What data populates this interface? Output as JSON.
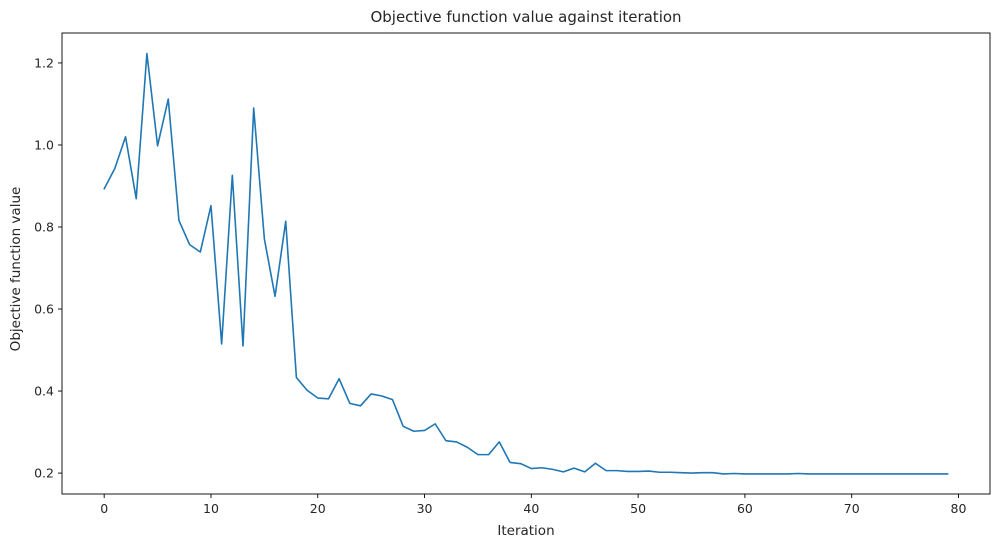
{
  "chart_data": {
    "type": "line",
    "title": "Objective function value against iteration",
    "xlabel": "Iteration",
    "ylabel": "Objective function value",
    "xlim": [
      -3.95,
      82.95
    ],
    "ylim": [
      0.149,
      1.273
    ],
    "xticks": [
      0,
      10,
      20,
      30,
      40,
      50,
      60,
      70,
      80
    ],
    "xtick_labels": [
      "0",
      "10",
      "20",
      "30",
      "40",
      "50",
      "60",
      "70",
      "80"
    ],
    "yticks": [
      0.2,
      0.4,
      0.6,
      0.8,
      1.0,
      1.2
    ],
    "ytick_labels": [
      "0.2",
      "0.4",
      "0.6",
      "0.8",
      "1.0",
      "1.2"
    ],
    "grid": false,
    "series": [
      {
        "color": "#1f77b4",
        "x": [
          0,
          1,
          2,
          3,
          4,
          5,
          6,
          7,
          8,
          9,
          10,
          11,
          12,
          13,
          14,
          15,
          16,
          17,
          18,
          19,
          20,
          21,
          22,
          23,
          24,
          25,
          26,
          27,
          28,
          29,
          30,
          31,
          32,
          33,
          34,
          35,
          36,
          37,
          38,
          39,
          40,
          41,
          42,
          43,
          44,
          45,
          46,
          47,
          48,
          49,
          50,
          51,
          52,
          53,
          54,
          55,
          56,
          57,
          58,
          59,
          60,
          61,
          62,
          63,
          64,
          65,
          66,
          67,
          68,
          69,
          70,
          71,
          72,
          73,
          74,
          75,
          76,
          77,
          78,
          79
        ],
        "y": [
          0.893,
          0.943,
          1.02,
          0.869,
          1.223,
          0.998,
          1.112,
          0.816,
          0.757,
          0.739,
          0.852,
          0.515,
          0.926,
          0.51,
          1.09,
          0.771,
          0.631,
          0.814,
          0.433,
          0.402,
          0.383,
          0.381,
          0.43,
          0.37,
          0.364,
          0.393,
          0.388,
          0.379,
          0.314,
          0.302,
          0.304,
          0.32,
          0.279,
          0.276,
          0.263,
          0.245,
          0.245,
          0.276,
          0.226,
          0.223,
          0.211,
          0.213,
          0.209,
          0.203,
          0.212,
          0.203,
          0.224,
          0.206,
          0.206,
          0.204,
          0.204,
          0.205,
          0.202,
          0.202,
          0.201,
          0.2,
          0.201,
          0.201,
          0.198,
          0.199,
          0.198,
          0.198,
          0.198,
          0.198,
          0.198,
          0.199,
          0.198,
          0.198,
          0.198,
          0.198,
          0.198,
          0.198,
          0.198,
          0.198,
          0.198,
          0.198,
          0.198,
          0.198,
          0.198,
          0.198
        ]
      }
    ]
  }
}
